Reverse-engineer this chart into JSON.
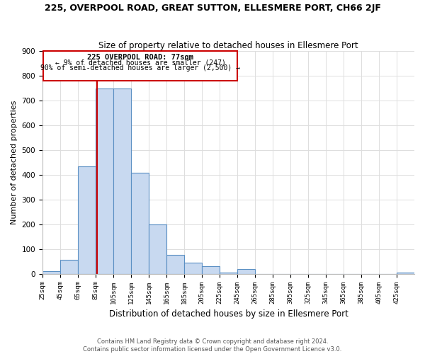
{
  "title": "225, OVERPOOL ROAD, GREAT SUTTON, ELLESMERE PORT, CH66 2JF",
  "subtitle": "Size of property relative to detached houses in Ellesmere Port",
  "xlabel": "Distribution of detached houses by size in Ellesmere Port",
  "ylabel": "Number of detached properties",
  "bin_labels": [
    "25sqm",
    "45sqm",
    "65sqm",
    "85sqm",
    "105sqm",
    "125sqm",
    "145sqm",
    "165sqm",
    "185sqm",
    "205sqm",
    "225sqm",
    "245sqm",
    "265sqm",
    "285sqm",
    "305sqm",
    "325sqm",
    "345sqm",
    "365sqm",
    "385sqm",
    "405sqm",
    "425sqm"
  ],
  "bar_values": [
    10,
    57,
    435,
    750,
    750,
    408,
    200,
    77,
    45,
    30,
    5,
    20,
    0,
    0,
    0,
    0,
    0,
    0,
    0,
    0,
    5
  ],
  "bar_color": "#c8d9f0",
  "bar_edge_color": "#5a8fc3",
  "property_line_x": 77,
  "property_line_color": "#cc0000",
  "annotation_title": "225 OVERPOOL ROAD: 77sqm",
  "annotation_line1": "← 9% of detached houses are smaller (247)",
  "annotation_line2": "90% of semi-detached houses are larger (2,500) →",
  "annotation_box_color": "#cc0000",
  "ylim": [
    0,
    900
  ],
  "yticks": [
    0,
    100,
    200,
    300,
    400,
    500,
    600,
    700,
    800,
    900
  ],
  "footer_line1": "Contains HM Land Registry data © Crown copyright and database right 2024.",
  "footer_line2": "Contains public sector information licensed under the Open Government Licence v3.0.",
  "bg_color": "#ffffff",
  "grid_color": "#dddddd"
}
